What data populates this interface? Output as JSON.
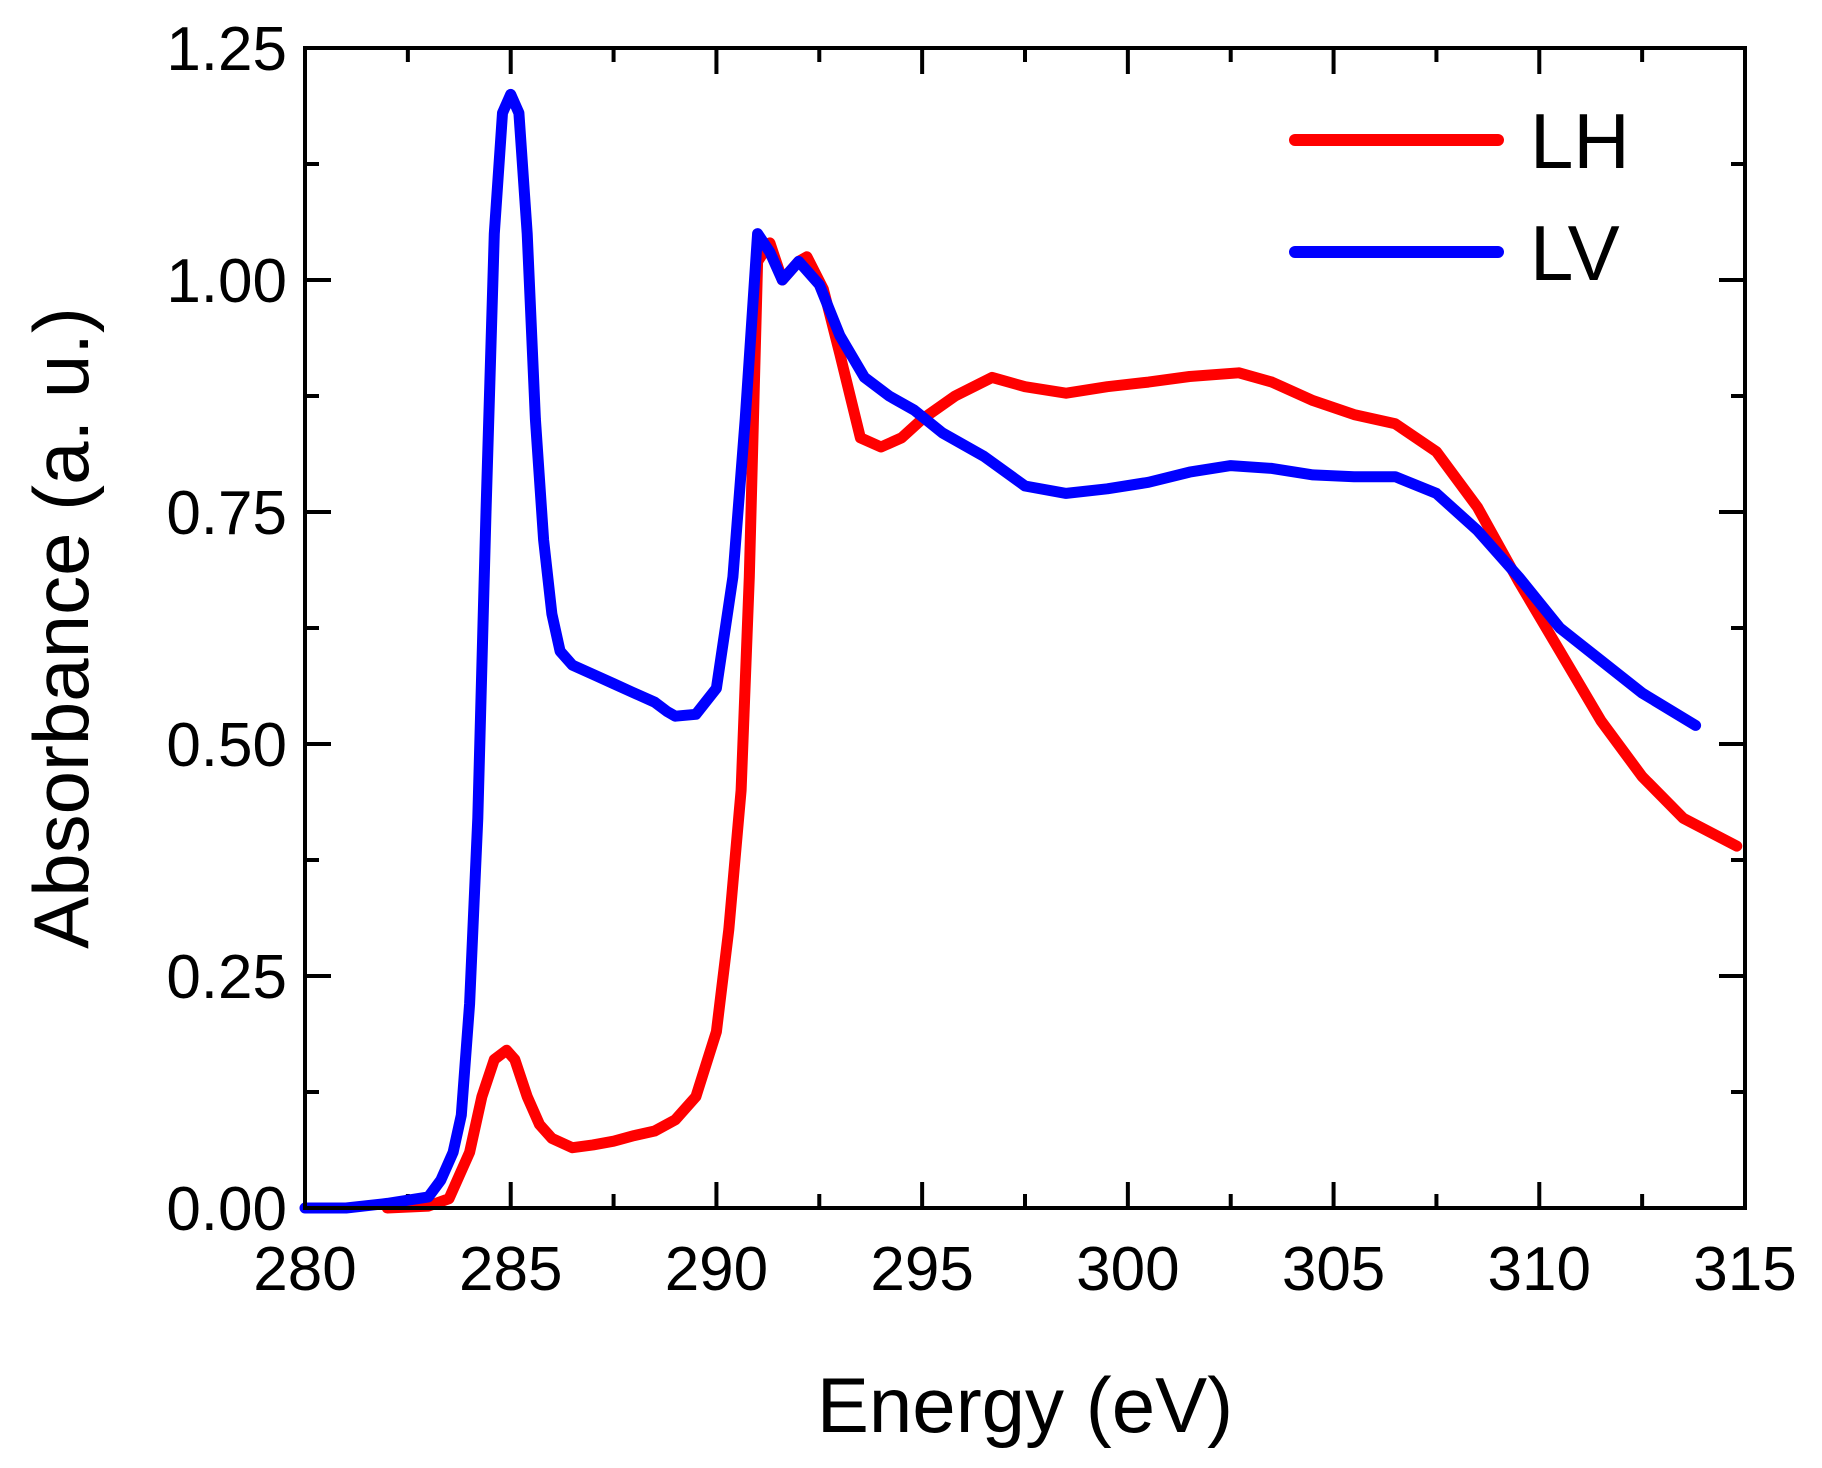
{
  "chart_data": {
    "type": "line",
    "title": "",
    "xlabel": "Energy (eV)",
    "ylabel": "Absorbance (a. u.)",
    "xlim": [
      280,
      315
    ],
    "ylim": [
      0,
      1.25
    ],
    "xticks": [
      280,
      285,
      290,
      295,
      300,
      305,
      310,
      315
    ],
    "xtick_labels": [
      "280",
      "285",
      "290",
      "295",
      "300",
      "305",
      "310",
      "315"
    ],
    "yticks": [
      0,
      0.25,
      0.5,
      0.75,
      1.0,
      1.25
    ],
    "ytick_labels": [
      "0.00",
      "0.25",
      "0.50",
      "0.75",
      "1.00",
      "1.25"
    ],
    "grid": false,
    "legend_position": "top-right",
    "series": [
      {
        "name": "LH",
        "color": "#ff0000",
        "x": [
          282.0,
          283.0,
          283.5,
          284.0,
          284.3,
          284.6,
          284.9,
          285.1,
          285.4,
          285.7,
          286.0,
          286.5,
          287.0,
          287.5,
          288.0,
          288.5,
          289.0,
          289.5,
          290.0,
          290.3,
          290.6,
          290.8,
          291.0,
          291.3,
          291.6,
          292.0,
          292.2,
          292.6,
          293.0,
          293.5,
          294.0,
          294.5,
          295.0,
          295.8,
          296.7,
          297.5,
          298.5,
          299.5,
          300.5,
          301.5,
          302.7,
          303.5,
          304.5,
          305.5,
          306.5,
          307.5,
          308.5,
          309.5,
          310.5,
          311.5,
          312.5,
          313.5,
          314.8
        ],
        "y": [
          0.0,
          0.002,
          0.01,
          0.06,
          0.12,
          0.16,
          0.17,
          0.16,
          0.12,
          0.09,
          0.075,
          0.065,
          0.068,
          0.072,
          0.078,
          0.083,
          0.095,
          0.12,
          0.19,
          0.3,
          0.45,
          0.68,
          1.02,
          1.04,
          1.0,
          1.02,
          1.025,
          0.99,
          0.92,
          0.83,
          0.82,
          0.83,
          0.85,
          0.875,
          0.895,
          0.885,
          0.878,
          0.885,
          0.89,
          0.896,
          0.9,
          0.89,
          0.87,
          0.855,
          0.845,
          0.815,
          0.755,
          0.675,
          0.6,
          0.525,
          0.465,
          0.42,
          0.39
        ]
      },
      {
        "name": "LV",
        "color": "#0000ff",
        "x": [
          280.0,
          281.0,
          282.0,
          283.0,
          283.3,
          283.6,
          283.8,
          284.0,
          284.2,
          284.4,
          284.6,
          284.8,
          285.0,
          285.2,
          285.4,
          285.6,
          285.8,
          286.0,
          286.2,
          286.5,
          287.0,
          287.5,
          288.0,
          288.5,
          288.8,
          289.0,
          289.5,
          290.0,
          290.4,
          290.7,
          291.0,
          291.3,
          291.6,
          292.0,
          292.5,
          293.0,
          293.6,
          294.2,
          294.8,
          295.5,
          296.5,
          297.5,
          298.5,
          299.5,
          300.5,
          301.5,
          302.5,
          303.5,
          304.5,
          305.5,
          306.5,
          307.5,
          308.5,
          309.5,
          310.5,
          311.5,
          312.5,
          313.8
        ],
        "y": [
          0.0,
          0.0,
          0.005,
          0.012,
          0.03,
          0.06,
          0.1,
          0.22,
          0.42,
          0.75,
          1.05,
          1.18,
          1.2,
          1.18,
          1.05,
          0.85,
          0.72,
          0.64,
          0.6,
          0.585,
          0.575,
          0.565,
          0.555,
          0.545,
          0.535,
          0.53,
          0.532,
          0.56,
          0.68,
          0.85,
          1.05,
          1.03,
          1.0,
          1.02,
          0.995,
          0.94,
          0.895,
          0.875,
          0.86,
          0.835,
          0.81,
          0.778,
          0.77,
          0.775,
          0.782,
          0.793,
          0.8,
          0.797,
          0.79,
          0.788,
          0.788,
          0.77,
          0.73,
          0.68,
          0.625,
          0.59,
          0.555,
          0.52
        ]
      }
    ]
  }
}
